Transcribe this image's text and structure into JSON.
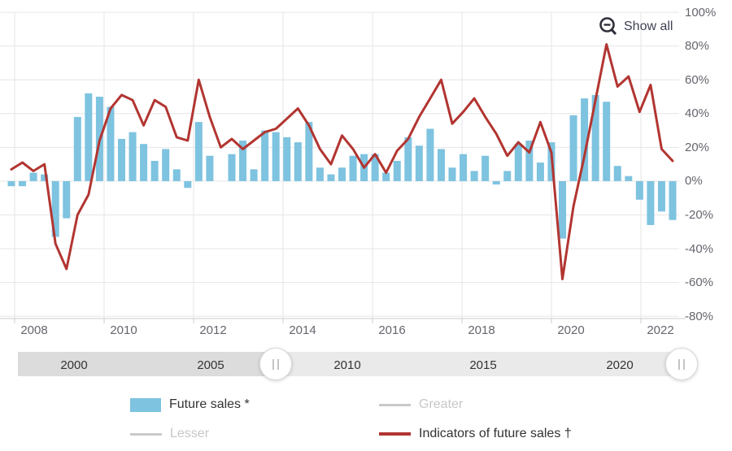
{
  "toolbar": {
    "show_all_label": "Show all"
  },
  "colors": {
    "bar": "#7ec3e0",
    "line": "#b23531",
    "grid": "#e6e6e6",
    "axis_line": "#cccccc",
    "axis_label": "#65656e",
    "muted_series": "#c9c9c9",
    "navigator_selected": "#eaeaea",
    "navigator_outside": "#dcdcdc",
    "text_dark": "#333333"
  },
  "y_axis": {
    "labels": [
      "100%",
      "80%",
      "60%",
      "40%",
      "20%",
      "0%",
      "-20%",
      "-40%",
      "-60%",
      "-80%"
    ],
    "max": 100,
    "min": -80,
    "step": 20
  },
  "x_axis": {
    "labels": [
      "2008",
      "2010",
      "2012",
      "2014",
      "2016",
      "2018",
      "2020",
      "2022"
    ]
  },
  "navigator": {
    "labels": [
      "2000",
      "2005",
      "2010",
      "2015",
      "2020"
    ],
    "handle_glyph": "||"
  },
  "legend": {
    "items": [
      {
        "label": "Future sales *",
        "swatch": "bar",
        "color": "#7ec3e0",
        "active": true
      },
      {
        "label": "Greater",
        "swatch": "line",
        "color": "#c9c9c9",
        "active": false
      },
      {
        "label": "Lesser",
        "swatch": "line",
        "color": "#c9c9c9",
        "active": false
      },
      {
        "label": "Indicators of future sales †",
        "swatch": "line",
        "color": "#b23531",
        "active": true
      }
    ]
  },
  "chart_data": {
    "type": "combo",
    "title": "",
    "xlabel": "",
    "ylabel": "%",
    "ylim": [
      -80,
      100
    ],
    "grid": true,
    "legend_position": "bottom",
    "x_tick_labels": [
      "2008",
      "2010",
      "2012",
      "2014",
      "2016",
      "2018",
      "2020",
      "2022"
    ],
    "categories": [
      "2007-Q4",
      "2008-Q1",
      "2008-Q2",
      "2008-Q3",
      "2008-Q4",
      "2009-Q1",
      "2009-Q2",
      "2009-Q3",
      "2009-Q4",
      "2010-Q1",
      "2010-Q2",
      "2010-Q3",
      "2010-Q4",
      "2011-Q1",
      "2011-Q2",
      "2011-Q3",
      "2011-Q4",
      "2012-Q1",
      "2012-Q2",
      "2012-Q3",
      "2012-Q4",
      "2013-Q1",
      "2013-Q2",
      "2013-Q3",
      "2013-Q4",
      "2014-Q1",
      "2014-Q2",
      "2014-Q3",
      "2014-Q4",
      "2015-Q1",
      "2015-Q2",
      "2015-Q3",
      "2015-Q4",
      "2016-Q1",
      "2016-Q2",
      "2016-Q3",
      "2016-Q4",
      "2017-Q1",
      "2017-Q2",
      "2017-Q3",
      "2017-Q4",
      "2018-Q1",
      "2018-Q2",
      "2018-Q3",
      "2018-Q4",
      "2019-Q1",
      "2019-Q2",
      "2019-Q3",
      "2019-Q4",
      "2020-Q1",
      "2020-Q2",
      "2020-Q3",
      "2020-Q4",
      "2021-Q1",
      "2021-Q2",
      "2021-Q3",
      "2021-Q4",
      "2022-Q1",
      "2022-Q2",
      "2022-Q3",
      "2022-Q4"
    ],
    "series": [
      {
        "name": "Future sales *",
        "type": "bar",
        "color": "#7ec3e0",
        "unit": "%",
        "values": [
          -3,
          -3,
          5,
          4,
          -33,
          -22,
          38,
          52,
          50,
          44,
          25,
          29,
          22,
          12,
          19,
          7,
          -4,
          35,
          15,
          0,
          16,
          24,
          7,
          30,
          29,
          26,
          23,
          35,
          8,
          4,
          8,
          15,
          16,
          16,
          5,
          12,
          26,
          21,
          31,
          19,
          8,
          16,
          6,
          15,
          -2,
          6,
          22,
          24,
          11,
          23,
          -34,
          39,
          49,
          51,
          47,
          9,
          3,
          -11,
          -26,
          -18,
          -23
        ]
      },
      {
        "name": "Indicators of future sales †",
        "type": "line",
        "color": "#b23531",
        "unit": "%",
        "values": [
          7,
          11,
          6,
          10,
          -37,
          -52,
          -20,
          -8,
          24,
          43,
          51,
          48,
          33,
          48,
          44,
          26,
          24,
          60,
          38,
          20,
          25,
          19,
          24,
          29,
          31,
          37,
          43,
          33,
          19,
          10,
          27,
          19,
          8,
          16,
          5,
          18,
          25,
          38,
          49,
          60,
          34,
          41,
          49,
          38,
          28,
          15,
          23,
          17,
          35,
          17,
          -58,
          -15,
          15,
          48,
          81,
          56,
          62,
          41,
          57,
          19,
          12
        ]
      },
      {
        "name": "Greater",
        "type": "line",
        "color": "#c9c9c9",
        "hidden": true,
        "values": []
      },
      {
        "name": "Lesser",
        "type": "line",
        "color": "#c9c9c9",
        "hidden": true,
        "values": []
      }
    ]
  }
}
